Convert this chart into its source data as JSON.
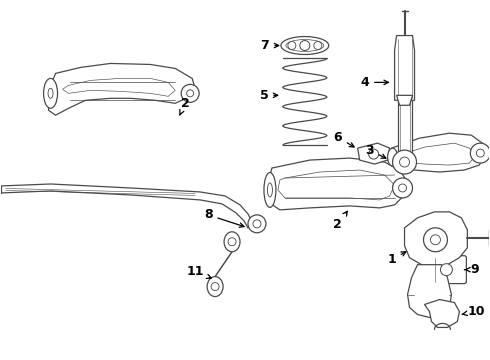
{
  "bg_color": "#ffffff",
  "line_color": "#4a4a4a",
  "label_color": "#000000",
  "figsize": [
    4.9,
    3.6
  ],
  "dpi": 100,
  "lw": 0.9
}
